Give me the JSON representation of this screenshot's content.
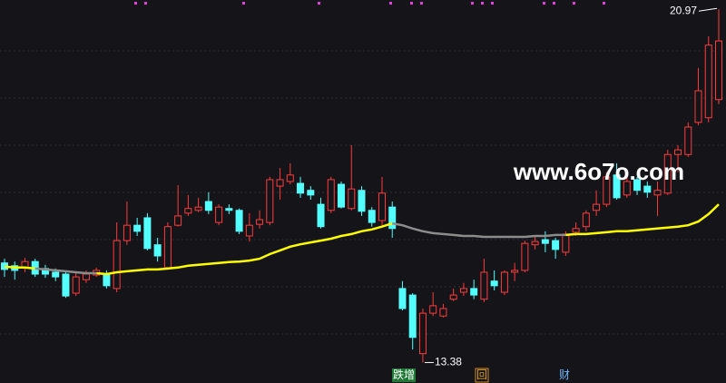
{
  "chart_data": {
    "type": "candlestick",
    "open": [
      15.52,
      15.46,
      15.42,
      15.55,
      15.4,
      15.32,
      15.28,
      14.87,
      15.16,
      15.26,
      15.28,
      14.97,
      16.0,
      16.33,
      16.49,
      15.91,
      15.42,
      16.33,
      16.59,
      16.65,
      16.84,
      16.39,
      16.69,
      16.65,
      16.1,
      16.35,
      16.39,
      17.17,
      17.27,
      17.23,
      17.08,
      16.78,
      16.65,
      17.21,
      16.69,
      17.08,
      16.65,
      16.43,
      16.72,
      14.97,
      14.83,
      13.57,
      14.44,
      14.38,
      14.74,
      14.89,
      14.97,
      14.74,
      15.13,
      14.89,
      15.32,
      15.36,
      15.91,
      16.02,
      16.0,
      15.75,
      16.18,
      16.3,
      16.65,
      16.78,
      17.41,
      16.98,
      17.31,
      17.17,
      16.98,
      17.02,
      17.85,
      17.85,
      18.54,
      18.64,
      19.03
    ],
    "high": [
      15.61,
      15.55,
      15.63,
      15.61,
      15.48,
      15.4,
      15.36,
      15.32,
      15.36,
      15.42,
      15.36,
      16.39,
      16.84,
      16.49,
      16.59,
      16.06,
      16.39,
      17.19,
      16.98,
      16.92,
      17.04,
      16.78,
      16.78,
      16.69,
      16.59,
      16.65,
      17.37,
      17.56,
      17.66,
      17.37,
      17.17,
      16.92,
      17.37,
      17.27,
      18.05,
      17.17,
      16.72,
      17.37,
      16.84,
      15.13,
      14.87,
      14.54,
      14.89,
      14.64,
      14.97,
      15.09,
      15.16,
      15.61,
      15.36,
      15.36,
      15.52,
      16.0,
      16.1,
      16.2,
      16.06,
      16.2,
      16.39,
      16.65,
      17.08,
      17.47,
      17.66,
      17.47,
      17.37,
      17.27,
      17.27,
      17.95,
      18.05,
      18.54,
      19.71,
      20.39,
      20.97
    ],
    "low": [
      15.22,
      15.16,
      15.32,
      15.22,
      15.2,
      15.13,
      14.77,
      14.81,
      15.09,
      15.22,
      14.97,
      14.89,
      15.91,
      16.1,
      15.79,
      15.55,
      15.38,
      16.3,
      16.53,
      16.61,
      16.57,
      16.33,
      16.57,
      16.14,
      15.98,
      16.26,
      16.33,
      16.88,
      17.21,
      16.92,
      16.88,
      16.26,
      16.59,
      16.69,
      16.65,
      16.53,
      16.3,
      16.33,
      16.06,
      14.5,
      13.66,
      13.38,
      14.38,
      14.35,
      14.7,
      14.81,
      14.74,
      14.68,
      14.93,
      14.83,
      15.13,
      15.32,
      15.81,
      15.75,
      15.61,
      15.67,
      16.1,
      16.2,
      16.53,
      16.72,
      16.88,
      16.92,
      16.98,
      16.92,
      16.53,
      16.98,
      17.47,
      17.8,
      18.48,
      18.54,
      18.93
    ],
    "close": [
      15.38,
      15.36,
      15.55,
      15.28,
      15.28,
      15.22,
      14.81,
      15.22,
      15.28,
      15.36,
      15.03,
      16.0,
      16.33,
      16.2,
      15.83,
      15.67,
      16.3,
      16.53,
      16.69,
      16.72,
      16.65,
      16.72,
      16.65,
      16.2,
      16.33,
      16.45,
      17.31,
      17.31,
      17.41,
      17.02,
      16.98,
      16.3,
      17.31,
      16.72,
      17.11,
      16.63,
      16.39,
      17.02,
      16.26,
      14.54,
      13.92,
      14.44,
      14.6,
      14.54,
      14.83,
      14.97,
      14.83,
      15.32,
      15.03,
      15.32,
      15.36,
      15.94,
      15.98,
      15.94,
      15.81,
      16.14,
      16.26,
      16.59,
      16.78,
      17.37,
      16.92,
      17.27,
      17.08,
      17.04,
      17.08,
      17.85,
      17.95,
      18.44,
      19.22,
      20.2,
      20.29
    ],
    "up_color": "#ff3b3b",
    "down_color": "#54ffff",
    "ylim": [
      12.94,
      21.17
    ],
    "series": [
      {
        "color": "#ffff00",
        "values": [
          15.44,
          15.42,
          15.42,
          15.4,
          null,
          null,
          null,
          null,
          null,
          15.3,
          15.28,
          15.32,
          15.34,
          15.36,
          15.38,
          15.38,
          15.4,
          15.42,
          15.46,
          15.48,
          15.5,
          15.52,
          15.54,
          15.55,
          15.57,
          15.61,
          15.71,
          15.79,
          15.87,
          15.92,
          15.96,
          16.0,
          16.04,
          16.1,
          16.14,
          16.2,
          16.24,
          16.3,
          16.37,
          null,
          null,
          null,
          null,
          null,
          null,
          null,
          null,
          null,
          null,
          null,
          null,
          null,
          null,
          null,
          null,
          16.12,
          16.14,
          16.14,
          16.16,
          16.18,
          16.2,
          16.2,
          16.22,
          16.24,
          16.26,
          16.28,
          16.3,
          16.33,
          16.41,
          16.57,
          16.78
        ]
      },
      {
        "color": "#8c8c8c",
        "values": [
          null,
          null,
          null,
          15.4,
          15.38,
          15.36,
          15.34,
          15.32,
          15.3,
          15.3,
          null,
          null,
          null,
          null,
          null,
          null,
          null,
          null,
          null,
          null,
          null,
          null,
          null,
          null,
          null,
          null,
          null,
          null,
          null,
          null,
          null,
          null,
          null,
          null,
          null,
          null,
          null,
          null,
          16.37,
          16.33,
          16.26,
          16.2,
          16.16,
          16.14,
          16.12,
          16.1,
          16.1,
          16.08,
          16.08,
          16.08,
          16.08,
          16.08,
          16.1,
          16.1,
          16.12,
          16.12,
          null,
          null,
          null,
          null,
          null,
          null,
          null,
          null,
          null,
          null,
          null,
          null,
          null,
          null,
          null
        ]
      }
    ],
    "watermark": "www.6o7o.com",
    "markers": [
      "跌增",
      "回",
      "财"
    ]
  }
}
